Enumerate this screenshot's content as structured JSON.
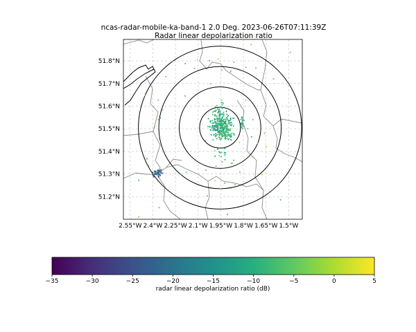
{
  "chart_data": [
    {
      "type": "scatter",
      "title": "ncas-radar-mobile-ka-band-1 2.0 Deg. 2023-06-26T07:11:39Z",
      "subtitle": "Radar linear depolarization ratio",
      "xlabel": "",
      "ylabel": "",
      "xlim": [
        -2.595,
        -1.41
      ],
      "ylim": [
        51.1,
        51.895
      ],
      "grid": true,
      "x_ticks": [
        -2.55,
        -2.4,
        -2.25,
        -2.1,
        -1.95,
        -1.8,
        -1.65,
        -1.5
      ],
      "x_tick_labels": [
        "2.55°W",
        "2.4°W",
        "2.25°W",
        "2.1°W",
        "1.95°W",
        "1.8°W",
        "1.65°W",
        "1.5°W"
      ],
      "y_ticks": [
        51.2,
        51.3,
        51.4,
        51.5,
        51.6,
        51.7,
        51.8
      ],
      "y_tick_labels": [
        "51.2°N",
        "51.3°N",
        "51.4°N",
        "51.5°N",
        "51.6°N",
        "51.7°N",
        "51.8°N"
      ],
      "range_rings": {
        "center": [
          -1.955,
          51.505
        ],
        "radii_lat": [
          0.09,
          0.18,
          0.27,
          0.36
        ]
      },
      "clusters": [
        {
          "lon": -1.95,
          "lat": 51.515,
          "spread_lon": 0.035,
          "spread_lat": 0.025,
          "count": 260,
          "value_db": -10
        },
        {
          "lon": -1.91,
          "lat": 51.465,
          "spread_lon": 0.03,
          "spread_lat": 0.01,
          "count": 45,
          "value_db": -8
        },
        {
          "lon": -1.955,
          "lat": 51.58,
          "spread_lon": 0.02,
          "spread_lat": 0.02,
          "count": 25,
          "value_db": -9
        },
        {
          "lon": -1.81,
          "lat": 51.53,
          "spread_lon": 0.008,
          "spread_lat": 0.015,
          "count": 18,
          "value_db": -10
        },
        {
          "lon": -2.37,
          "lat": 51.305,
          "spread_lon": 0.015,
          "spread_lat": 0.008,
          "count": 40,
          "value_db": -23
        },
        {
          "lon": -1.95,
          "lat": 51.39,
          "spread_lon": 0.02,
          "spread_lat": 0.02,
          "count": 14,
          "value_db": -9
        },
        {
          "lon": -1.95,
          "lat": 51.5,
          "spread_lon": 0.3,
          "spread_lat": 0.28,
          "count": 70,
          "value_db": -4
        }
      ]
    },
    {
      "type": "colorbar",
      "label": "radar linear depolarization ratio (dB)",
      "range": [
        -35,
        5
      ],
      "ticks": [
        -35,
        -30,
        -25,
        -20,
        -15,
        -10,
        -5,
        0,
        5
      ],
      "tick_labels": [
        "−35",
        "−30",
        "−25",
        "−20",
        "−15",
        "−10",
        "−5",
        "0",
        "5"
      ],
      "colormap": "viridis"
    }
  ]
}
